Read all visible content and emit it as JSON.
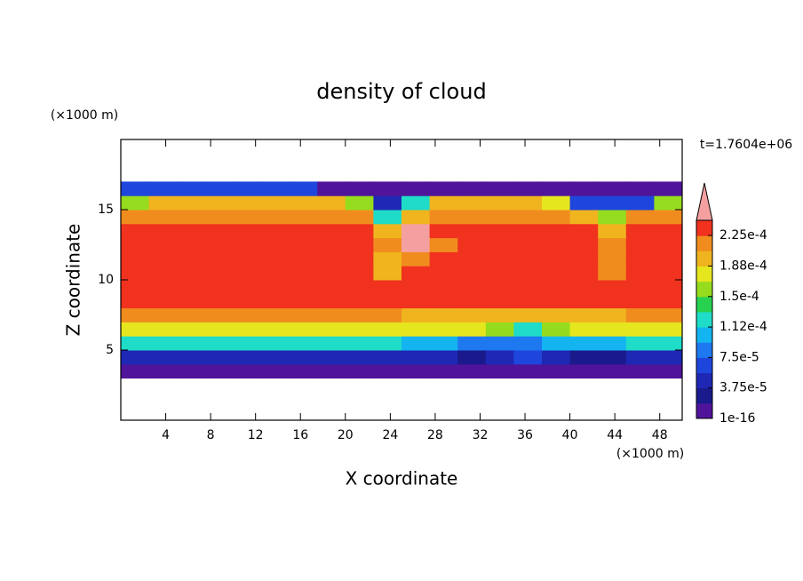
{
  "chart_data": {
    "type": "contour",
    "title": "density of cloud",
    "subtitle": "t=1.7604e+06",
    "x_label": "X coordinate",
    "y_label": "Z coordinate",
    "x_unit": "(×1000 m)",
    "y_unit": "(×1000 m)",
    "xlim": [
      0,
      50
    ],
    "ylim": [
      0,
      20
    ],
    "xticks": [
      4,
      8,
      12,
      16,
      20,
      24,
      28,
      32,
      36,
      40,
      44,
      48
    ],
    "yticks": [
      5,
      10,
      15
    ],
    "x": [
      1.25,
      3.75,
      6.25,
      8.75,
      11.25,
      13.75,
      16.25,
      18.75,
      21.25,
      23.75,
      26.25,
      28.75,
      31.25,
      33.75,
      36.25,
      38.75,
      41.25,
      43.75,
      46.25,
      48.75
    ],
    "z": [
      3.5,
      4.5,
      5.5,
      6.5,
      7.5,
      8.5,
      9.5,
      10.5,
      11.5,
      12.5,
      13.5,
      14.5,
      15.5,
      16.5
    ],
    "field": [
      [
        1e-05,
        1e-05,
        1e-05,
        1e-05,
        1e-05,
        1e-05,
        1e-05,
        1e-05,
        1e-05,
        1e-05,
        1e-05,
        1e-05,
        1e-05,
        1e-05,
        1e-05,
        1e-05,
        1e-05,
        1e-05,
        1e-05,
        1e-05
      ],
      [
        4e-05,
        4e-05,
        4e-05,
        4e-05,
        4e-05,
        4e-05,
        4e-05,
        4e-05,
        4e-05,
        4e-05,
        5e-05,
        4e-05,
        3e-05,
        4e-05,
        6e-05,
        4e-05,
        3e-05,
        3e-05,
        4e-05,
        4e-05
      ],
      [
        0.00012,
        0.00012,
        0.00012,
        0.00012,
        0.00012,
        0.00012,
        0.00012,
        0.00012,
        0.00012,
        0.00012,
        0.00011,
        0.0001,
        9e-05,
        9e-05,
        8e-05,
        0.0001,
        0.00011,
        0.00011,
        0.00012,
        0.00012
      ],
      [
        0.00018,
        0.00018,
        0.00018,
        0.00018,
        0.00018,
        0.00018,
        0.00018,
        0.00018,
        0.00018,
        0.00018,
        0.00017,
        0.00017,
        0.00017,
        0.00016,
        0.00013,
        0.00016,
        0.00017,
        0.00017,
        0.00018,
        0.00018
      ],
      [
        0.00021,
        0.00021,
        0.00021,
        0.00021,
        0.00021,
        0.00021,
        0.00021,
        0.00021,
        0.00021,
        0.00021,
        0.0002,
        0.0002,
        0.0002,
        0.0002,
        0.00019,
        0.0002,
        0.0002,
        0.0002,
        0.00021,
        0.00021
      ],
      [
        0.00023,
        0.00023,
        0.00023,
        0.00023,
        0.00023,
        0.00023,
        0.00023,
        0.00023,
        0.00023,
        0.00023,
        0.00023,
        0.00023,
        0.00023,
        0.00023,
        0.00023,
        0.00023,
        0.00023,
        0.00023,
        0.00023,
        0.00023
      ],
      [
        0.000235,
        0.000235,
        0.000235,
        0.000235,
        0.000235,
        0.000235,
        0.000235,
        0.000235,
        0.000235,
        0.000235,
        0.000235,
        0.000235,
        0.000235,
        0.000235,
        0.000235,
        0.000235,
        0.000235,
        0.000235,
        0.000235,
        0.000235
      ],
      [
        0.000235,
        0.000235,
        0.000235,
        0.000235,
        0.000235,
        0.000235,
        0.000235,
        0.000235,
        0.000235,
        0.00019,
        0.000235,
        0.000235,
        0.000235,
        0.000235,
        0.000235,
        0.000235,
        0.000235,
        0.00021,
        0.000235,
        0.000235
      ],
      [
        0.000235,
        0.000235,
        0.000235,
        0.000235,
        0.000235,
        0.000235,
        0.000235,
        0.000235,
        0.000235,
        0.0002,
        0.00022,
        0.000235,
        0.000235,
        0.000235,
        0.000235,
        0.000235,
        0.000235,
        0.00022,
        0.000235,
        0.000235
      ],
      [
        0.000235,
        0.000235,
        0.000235,
        0.000235,
        0.000235,
        0.000235,
        0.000235,
        0.000235,
        0.000235,
        0.00021,
        0.00025,
        0.00022,
        0.000235,
        0.000235,
        0.000235,
        0.000235,
        0.000235,
        0.00022,
        0.000235,
        0.000235
      ],
      [
        0.00023,
        0.00023,
        0.00023,
        0.00023,
        0.00023,
        0.00023,
        0.00023,
        0.00023,
        0.00023,
        0.0002,
        0.00025,
        0.00023,
        0.00023,
        0.00023,
        0.00023,
        0.00023,
        0.00023,
        0.0002,
        0.00023,
        0.00023
      ],
      [
        0.00022,
        0.00022,
        0.00022,
        0.00022,
        0.00022,
        0.00022,
        0.00022,
        0.00022,
        0.00021,
        0.00012,
        0.0002,
        0.00022,
        0.00022,
        0.00022,
        0.00022,
        0.00022,
        0.0002,
        0.00015,
        0.00021,
        0.00022
      ],
      [
        0.00016,
        0.0002,
        0.0002,
        0.0002,
        0.0002,
        0.0002,
        0.0002,
        0.0002,
        0.00015,
        5e-05,
        0.00013,
        0.0002,
        0.0002,
        0.0002,
        0.0002,
        0.00018,
        6e-05,
        6e-05,
        6e-05,
        0.00015
      ],
      [
        6e-05,
        6e-05,
        6e-05,
        6e-05,
        6e-05,
        6e-05,
        6e-05,
        1e-05,
        1e-05,
        1e-05,
        1e-05,
        1e-05,
        1e-05,
        1e-05,
        1e-05,
        1e-05,
        1e-05,
        1e-05,
        1e-05,
        1e-05
      ]
    ],
    "levels": [
      1e-16,
      1.875e-05,
      3.75e-05,
      5.625e-05,
      7.5e-05,
      9.375e-05,
      0.0001125,
      0.00013125,
      0.00015,
      0.00016875,
      0.0001875,
      0.00020625,
      0.000225,
      0.00024375
    ],
    "colors": [
      "#50149a",
      "#1a1a8c",
      "#1e28b4",
      "#1e46dc",
      "#1e78f0",
      "#14b4f0",
      "#1edcc8",
      "#28d250",
      "#96dc1e",
      "#e6e61e",
      "#f0b41e",
      "#f08c1e",
      "#f0321e"
    ],
    "over_color": "#f5a0a0",
    "cbar_ticks": [
      {
        "value": 1e-16,
        "label": "1e-16"
      },
      {
        "value": 3.75e-05,
        "label": "3.75e-5"
      },
      {
        "value": 7.5e-05,
        "label": "7.5e-5"
      },
      {
        "value": 0.0001125,
        "label": "1.12e-4"
      },
      {
        "value": 0.00015,
        "label": "1.5e-4"
      },
      {
        "value": 0.0001875,
        "label": "1.88e-4"
      },
      {
        "value": 0.000225,
        "label": "2.25e-4"
      }
    ]
  }
}
